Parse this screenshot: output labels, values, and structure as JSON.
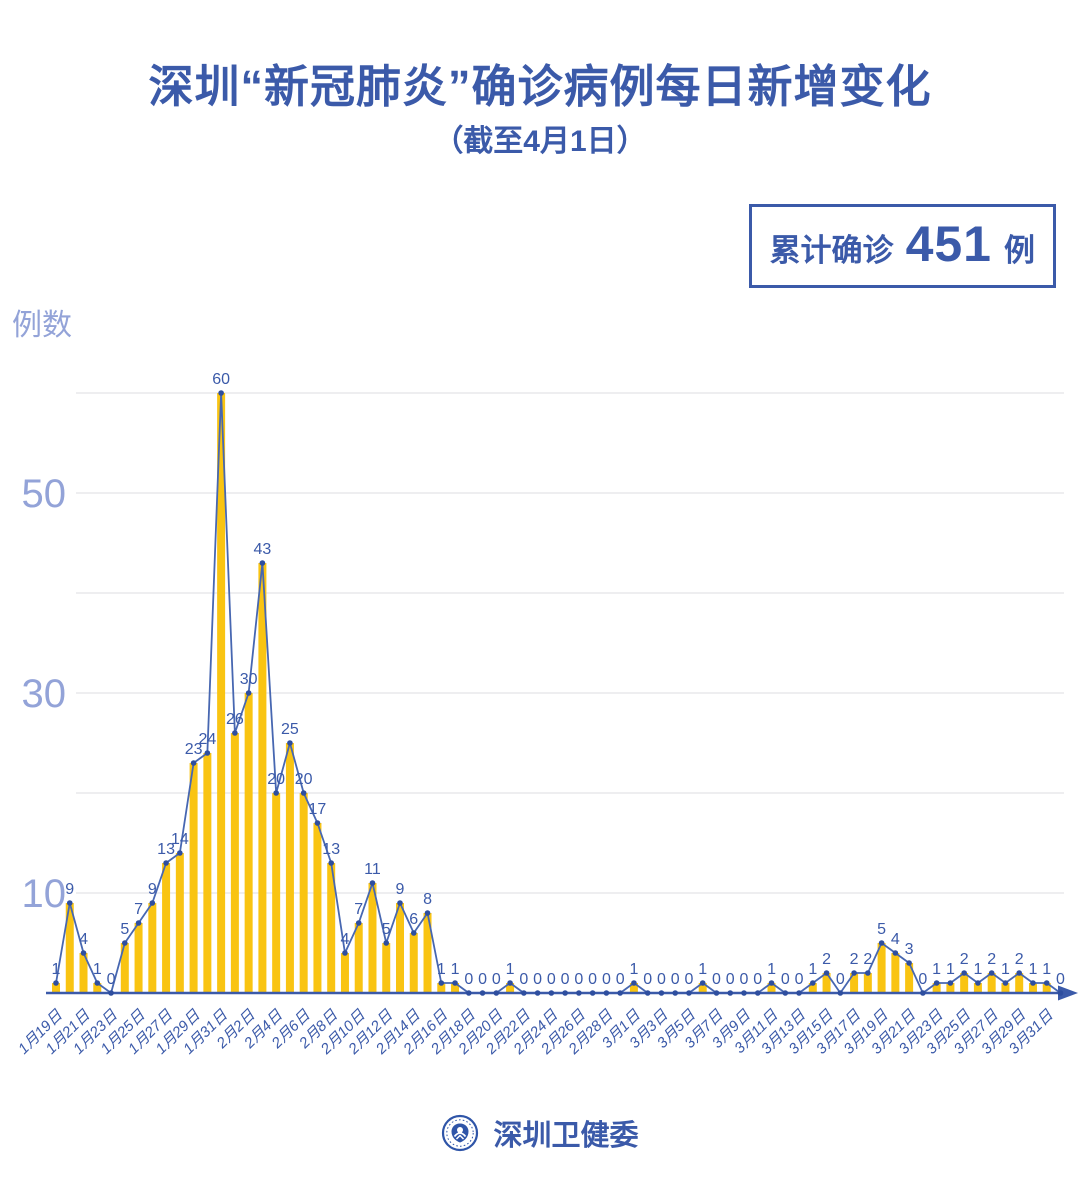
{
  "title": "深圳“新冠肺炎”确诊病例每日新增变化",
  "subtitle": "（截至4月1日）",
  "badge": {
    "prefix": "累计确诊",
    "value": "451",
    "suffix": "例"
  },
  "y_axis_title": "例数",
  "footer": {
    "org": "深圳卫健委"
  },
  "colors": {
    "accent_blue": "#3B5AA9",
    "bar_yellow": "#F9C412",
    "line_blue": "#4767B1",
    "dot_blue": "#2E4E9F",
    "grid_gray": "#E9E9EC",
    "axis_label_light": "#93A3D8",
    "background": "#FFFFFF"
  },
  "chart_data": {
    "type": "bar",
    "line_overlay": true,
    "title": "深圳“新冠肺炎”确诊病例每日新增变化",
    "subtitle": "截至4月1日",
    "cumulative_total": 451,
    "xlabel": "",
    "ylabel": "例数",
    "ylim": [
      0,
      63
    ],
    "gridlines": [
      10,
      20,
      30,
      40,
      50,
      60
    ],
    "y_tick_labels": [
      "10",
      "30",
      "50"
    ],
    "x_label_every": 2,
    "categories": [
      "1月19日",
      "1月20日",
      "1月21日",
      "1月22日",
      "1月23日",
      "1月24日",
      "1月25日",
      "1月26日",
      "1月27日",
      "1月28日",
      "1月29日",
      "1月30日",
      "1月31日",
      "2月1日",
      "2月2日",
      "2月3日",
      "2月4日",
      "2月5日",
      "2月6日",
      "2月7日",
      "2月8日",
      "2月9日",
      "2月10日",
      "2月11日",
      "2月12日",
      "2月13日",
      "2月14日",
      "2月15日",
      "2月16日",
      "2月17日",
      "2月18日",
      "2月19日",
      "2月20日",
      "2月21日",
      "2月22日",
      "2月23日",
      "2月24日",
      "2月25日",
      "2月26日",
      "2月27日",
      "2月28日",
      "2月29日",
      "3月1日",
      "3月2日",
      "3月3日",
      "3月4日",
      "3月5日",
      "3月6日",
      "3月7日",
      "3月8日",
      "3月9日",
      "3月10日",
      "3月11日",
      "3月12日",
      "3月13日",
      "3月14日",
      "3月15日",
      "3月16日",
      "3月17日",
      "3月18日",
      "3月19日",
      "3月20日",
      "3月21日",
      "3月22日",
      "3月23日",
      "3月24日",
      "3月25日",
      "3月26日",
      "3月27日",
      "3月28日",
      "3月29日",
      "3月30日",
      "3月31日",
      "4月1日"
    ],
    "values": [
      1,
      9,
      4,
      1,
      0,
      5,
      7,
      9,
      13,
      14,
      23,
      24,
      60,
      26,
      30,
      43,
      20,
      25,
      20,
      17,
      13,
      4,
      7,
      11,
      5,
      9,
      6,
      8,
      1,
      1,
      0,
      0,
      0,
      1,
      0,
      0,
      0,
      0,
      0,
      0,
      0,
      0,
      1,
      0,
      0,
      0,
      0,
      1,
      0,
      0,
      0,
      0,
      1,
      0,
      0,
      1,
      2,
      0,
      2,
      2,
      5,
      4,
      3,
      0,
      1,
      1,
      2,
      1,
      2,
      1,
      2,
      1,
      1,
      0
    ]
  }
}
